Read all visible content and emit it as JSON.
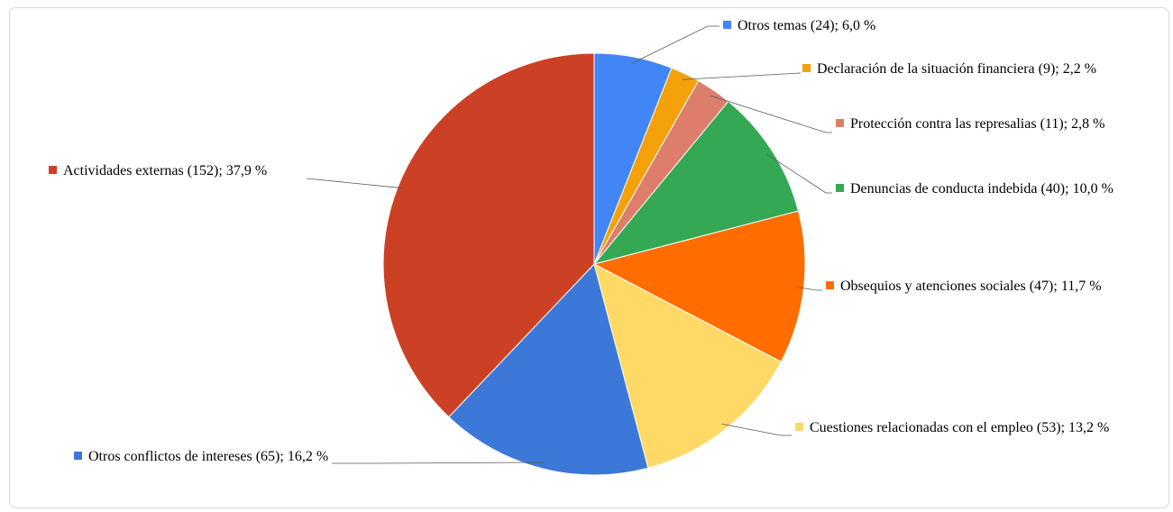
{
  "chart_data": {
    "type": "pie",
    "title": "",
    "slices": [
      {
        "label": "Otros temas (24); 6,0 %",
        "value": 24,
        "percent": 6.0,
        "color": "#4285f4"
      },
      {
        "label": "Declaración de la situación financiera (9); 2,2 %",
        "value": 9,
        "percent": 2.2,
        "color": "#f4a10c"
      },
      {
        "label": "Protección contra las represalias (11); 2,8 %",
        "value": 11,
        "percent": 2.8,
        "color": "#dd7e6b"
      },
      {
        "label": "Denuncias de conducta indebida (40); 10,0 %",
        "value": 40,
        "percent": 10.0,
        "color": "#34a853"
      },
      {
        "label": "Obsequios y atenciones sociales (47); 11,7 %",
        "value": 47,
        "percent": 11.7,
        "color": "#ff6d01"
      },
      {
        "label": "Cuestiones relacionadas con el empleo (53); 13,2 %",
        "value": 53,
        "percent": 13.2,
        "color": "#ffd966"
      },
      {
        "label": "Otros conflictos de intereses (65); 16,2 %",
        "value": 65,
        "percent": 16.2,
        "color": "#3c78d8"
      },
      {
        "label": "Actividades externas (152); 37,9 %",
        "value": 152,
        "percent": 37.9,
        "color": "#cc4125"
      }
    ]
  }
}
